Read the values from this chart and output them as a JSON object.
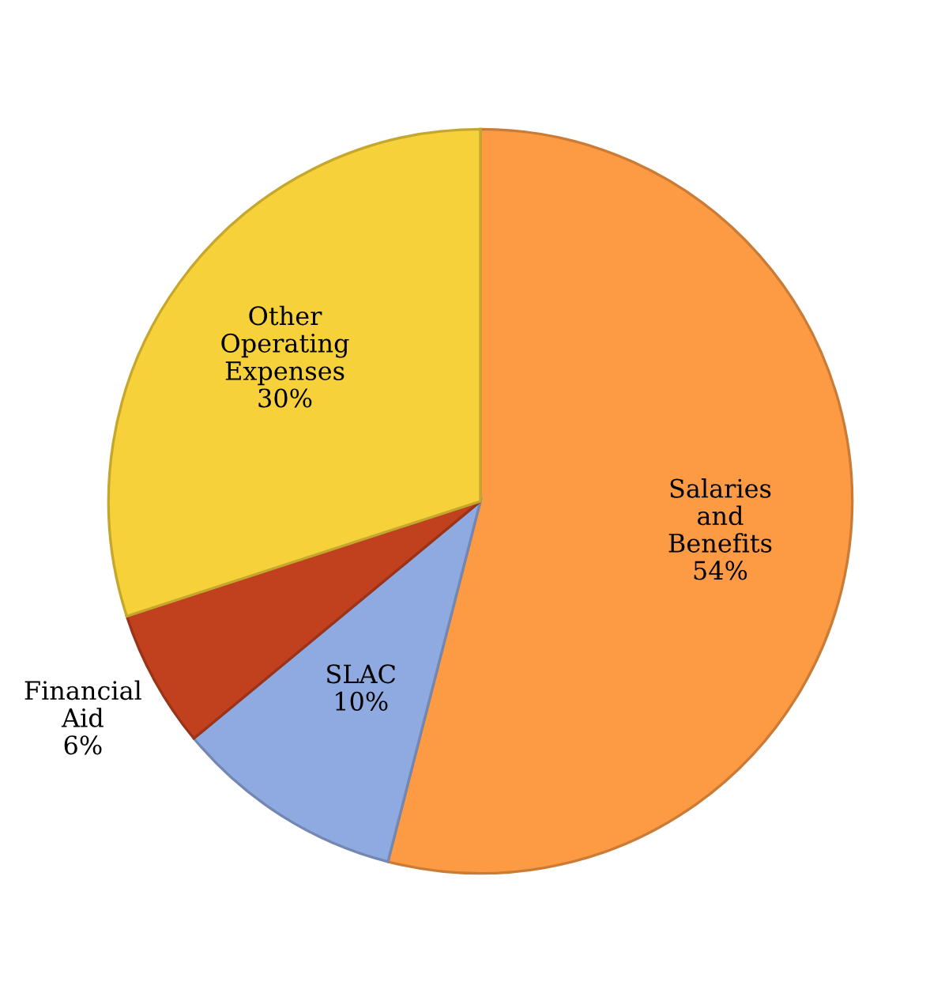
{
  "chart_data": {
    "type": "pie",
    "categories": [
      "Salaries\nand\nBenefits",
      "SLAC",
      "Financial\nAid",
      "Other\nOperating\nExpenses"
    ],
    "values": [
      54,
      10,
      6,
      30
    ],
    "value_labels": [
      "54%",
      "10%",
      "6%",
      "30%"
    ],
    "colors": [
      "#fd9a44",
      "#8eaae0",
      "#c1401e",
      "#f7d13a"
    ]
  }
}
